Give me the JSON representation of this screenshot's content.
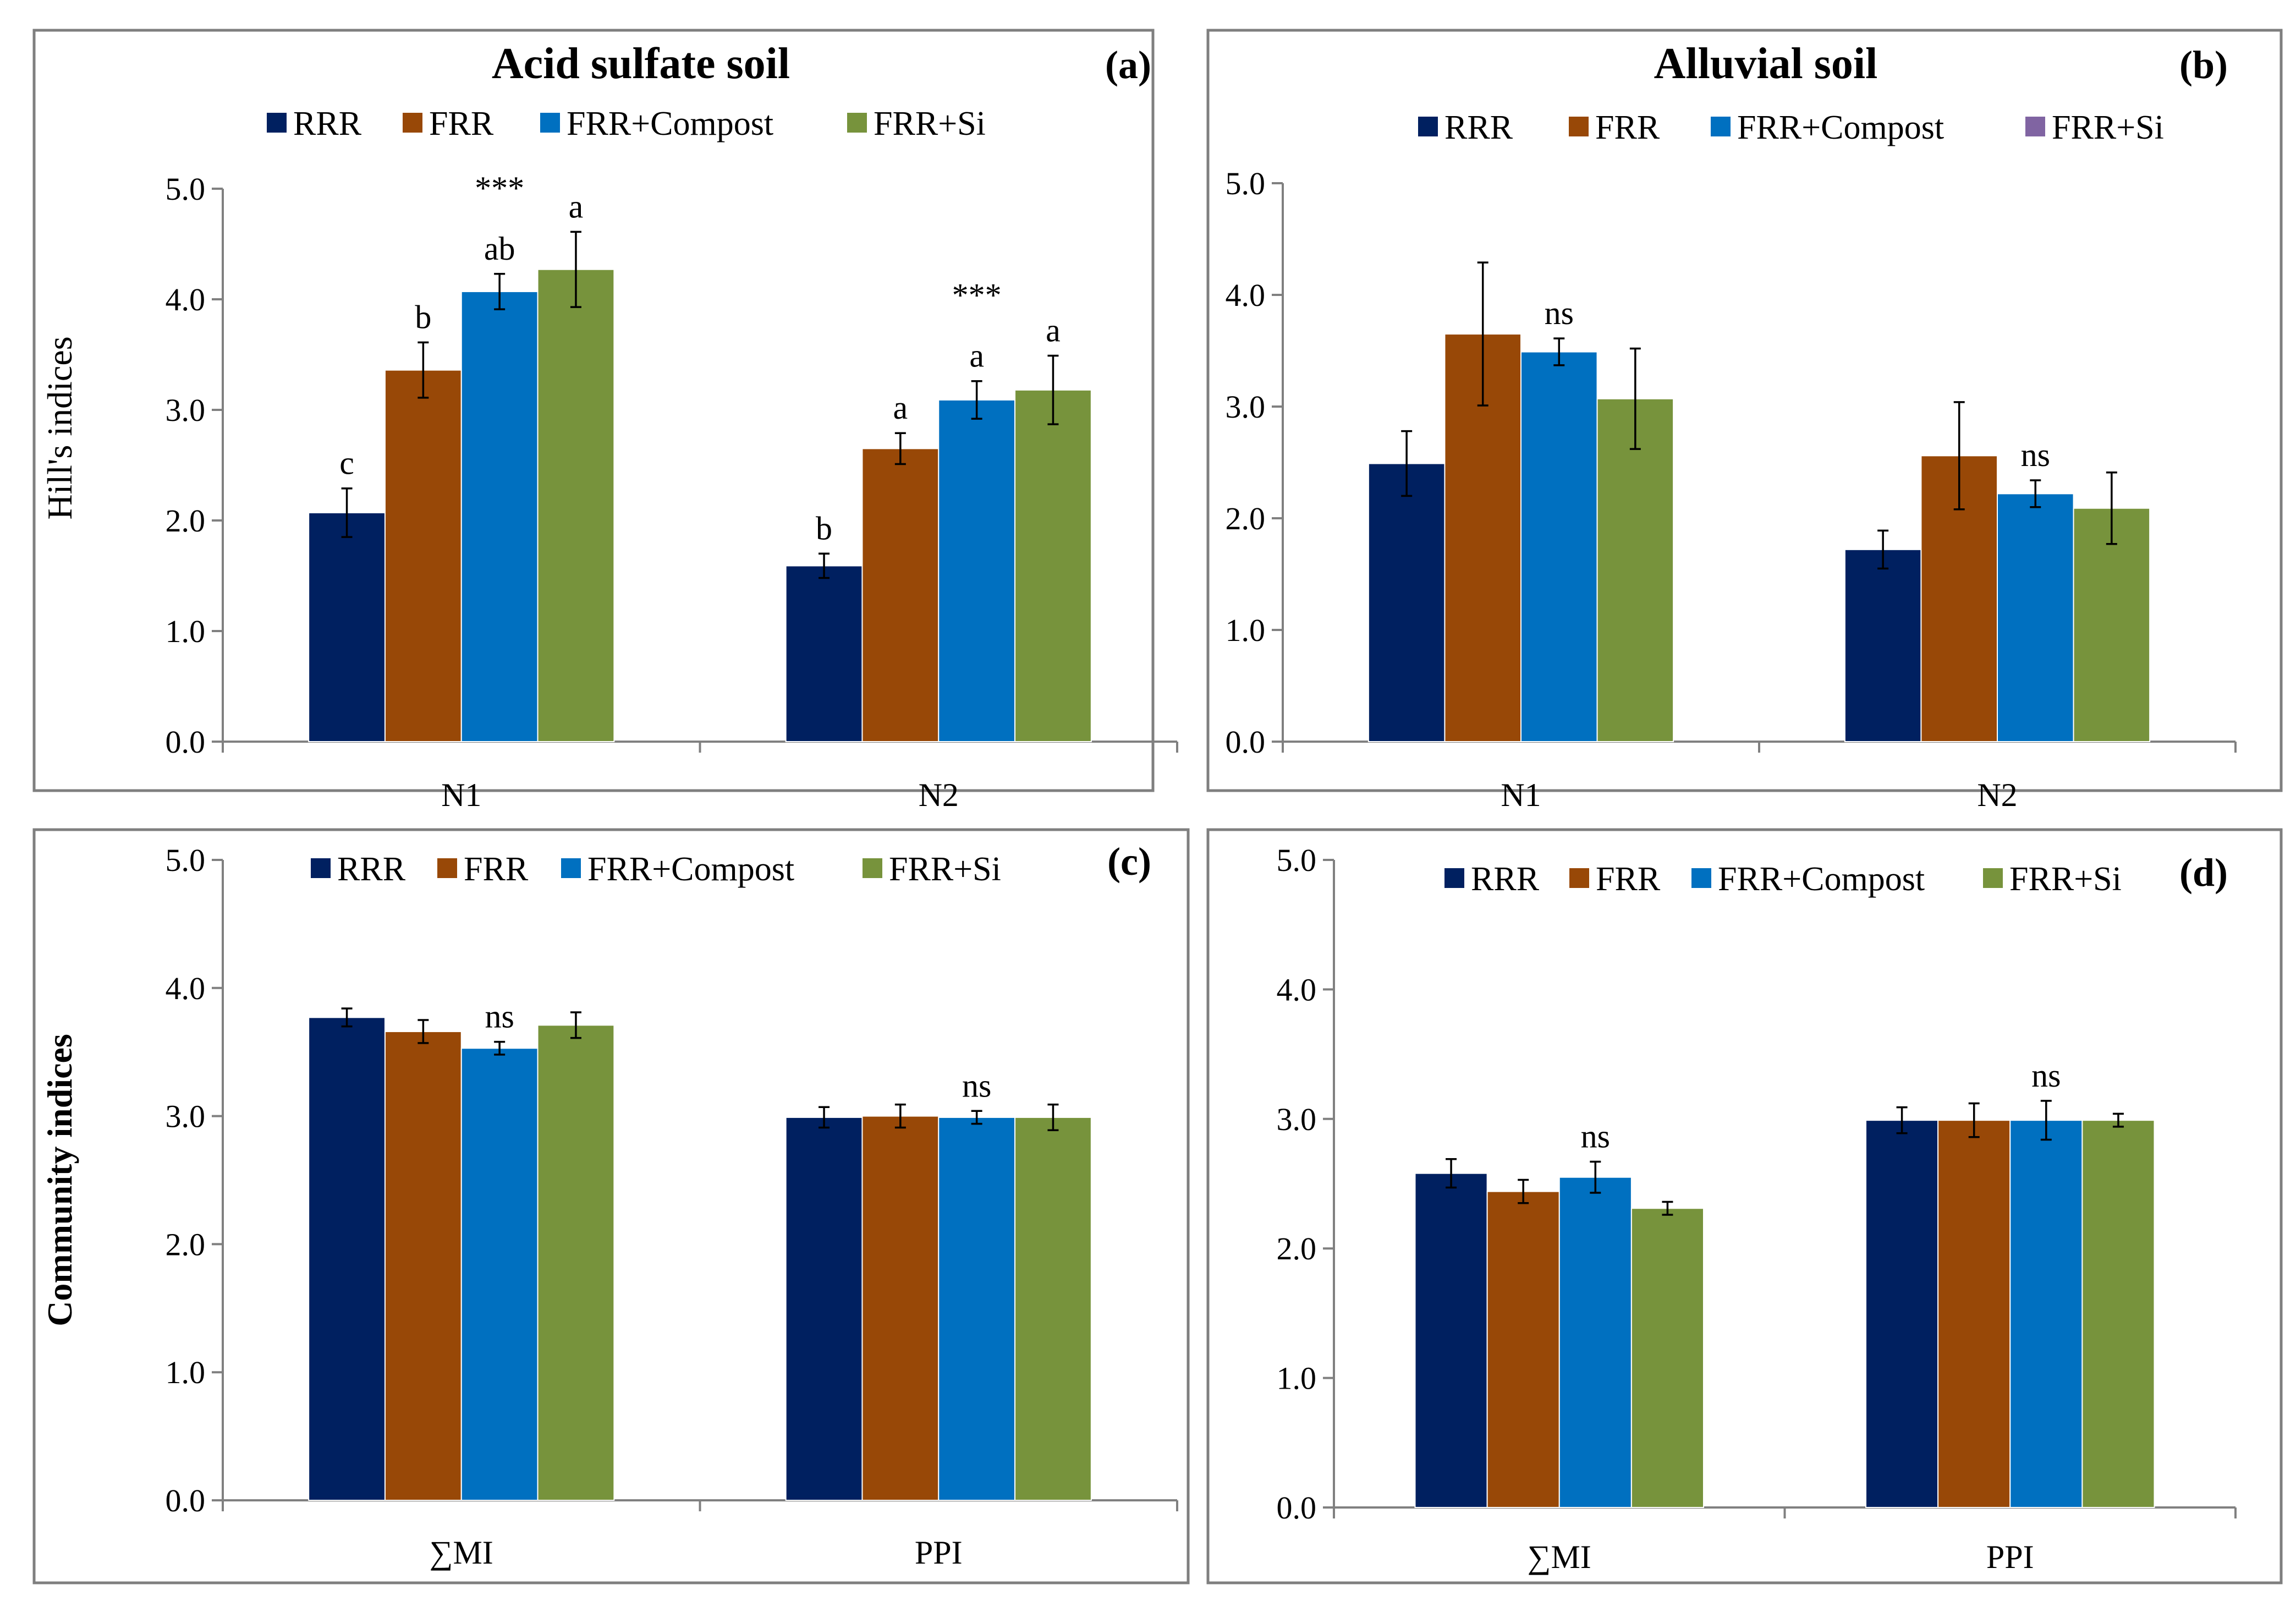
{
  "colors": {
    "RRR": "#002060",
    "FRR": "#984807",
    "FRR+Compost": "#0070C0",
    "FRR+Si": "#77933C",
    "FRR+Si_legend_b": "#8064A2"
  },
  "chart_data": [
    {
      "id": "a",
      "type": "bar",
      "title": "Acid sulfate soil",
      "panel_label": "(a)",
      "ylabel": "Hill's indices",
      "ylim": [
        0,
        5
      ],
      "yticks": [
        "0.0",
        "1.0",
        "2.0",
        "3.0",
        "4.0",
        "5.0"
      ],
      "categories": [
        "N1",
        "N2"
      ],
      "legend": [
        "RRR",
        "FRR",
        "FRR+Compost",
        "FRR+Si"
      ],
      "series": [
        {
          "name": "RRR",
          "values": [
            2.07,
            1.59
          ],
          "errors": [
            0.22,
            0.11
          ],
          "labels": [
            "c",
            "b"
          ]
        },
        {
          "name": "FRR",
          "values": [
            3.36,
            2.65
          ],
          "errors": [
            0.25,
            0.14
          ],
          "labels": [
            "b",
            "a"
          ]
        },
        {
          "name": "FRR+Compost",
          "values": [
            4.07,
            3.09
          ],
          "errors": [
            0.16,
            0.17
          ],
          "labels": [
            "ab",
            "a"
          ]
        },
        {
          "name": "FRR+Si",
          "values": [
            4.27,
            3.18
          ],
          "errors": [
            0.34,
            0.31
          ],
          "labels": [
            "a",
            "a"
          ]
        }
      ],
      "significance": [
        "***",
        "***"
      ]
    },
    {
      "id": "b",
      "type": "bar",
      "title": "Alluvial soil",
      "panel_label": "(b)",
      "ylabel": "",
      "ylim": [
        0,
        5
      ],
      "yticks": [
        "0.0",
        "1.0",
        "2.0",
        "3.0",
        "4.0",
        "5.0"
      ],
      "categories": [
        "N1",
        "N2"
      ],
      "legend": [
        "RRR",
        "FRR",
        "FRR+Compost",
        "FRR+Si"
      ],
      "series": [
        {
          "name": "RRR",
          "values": [
            2.49,
            1.72
          ],
          "errors": [
            0.29,
            0.17
          ]
        },
        {
          "name": "FRR",
          "values": [
            3.65,
            2.56
          ],
          "errors": [
            0.64,
            0.48
          ]
        },
        {
          "name": "FRR+Compost",
          "values": [
            3.49,
            2.22
          ],
          "errors": [
            0.12,
            0.12
          ]
        },
        {
          "name": "FRR+Si",
          "values": [
            3.07,
            2.09
          ],
          "errors": [
            0.45,
            0.32
          ]
        }
      ],
      "significance": [
        "ns",
        "ns"
      ]
    },
    {
      "id": "c",
      "type": "bar",
      "title": "",
      "panel_label": "(c)",
      "ylabel": "Community indices",
      "ylim": [
        0,
        5
      ],
      "yticks": [
        "0.0",
        "1.0",
        "2.0",
        "3.0",
        "4.0",
        "5.0"
      ],
      "categories": [
        "∑MI",
        "PPI"
      ],
      "legend": [
        "RRR",
        "FRR",
        "FRR+Compost",
        "FRR+Si"
      ],
      "series": [
        {
          "name": "RRR",
          "values": [
            3.77,
            2.99
          ],
          "errors": [
            0.07,
            0.08
          ]
        },
        {
          "name": "FRR",
          "values": [
            3.66,
            3.0
          ],
          "errors": [
            0.09,
            0.09
          ]
        },
        {
          "name": "FRR+Compost",
          "values": [
            3.53,
            2.99
          ],
          "errors": [
            0.05,
            0.05
          ]
        },
        {
          "name": "FRR+Si",
          "values": [
            3.71,
            2.99
          ],
          "errors": [
            0.1,
            0.1
          ]
        }
      ],
      "significance": [
        "ns",
        "ns"
      ]
    },
    {
      "id": "d",
      "type": "bar",
      "title": "",
      "panel_label": "(d)",
      "ylabel": "",
      "ylim": [
        0,
        5
      ],
      "yticks": [
        "0.0",
        "1.0",
        "2.0",
        "3.0",
        "4.0",
        "5.0"
      ],
      "categories": [
        "∑MI",
        "PPI"
      ],
      "legend": [
        "RRR",
        "FRR",
        "FRR+Compost",
        "FRR+Si"
      ],
      "series": [
        {
          "name": "RRR",
          "values": [
            2.58,
            2.99
          ],
          "errors": [
            0.11,
            0.1
          ]
        },
        {
          "name": "FRR",
          "values": [
            2.44,
            2.99
          ],
          "errors": [
            0.09,
            0.13
          ]
        },
        {
          "name": "FRR+Compost",
          "values": [
            2.55,
            2.99
          ],
          "errors": [
            0.12,
            0.15
          ]
        },
        {
          "name": "FRR+Si",
          "values": [
            2.31,
            2.99
          ],
          "errors": [
            0.05,
            0.05
          ]
        }
      ],
      "significance": [
        "ns",
        "ns"
      ]
    }
  ]
}
